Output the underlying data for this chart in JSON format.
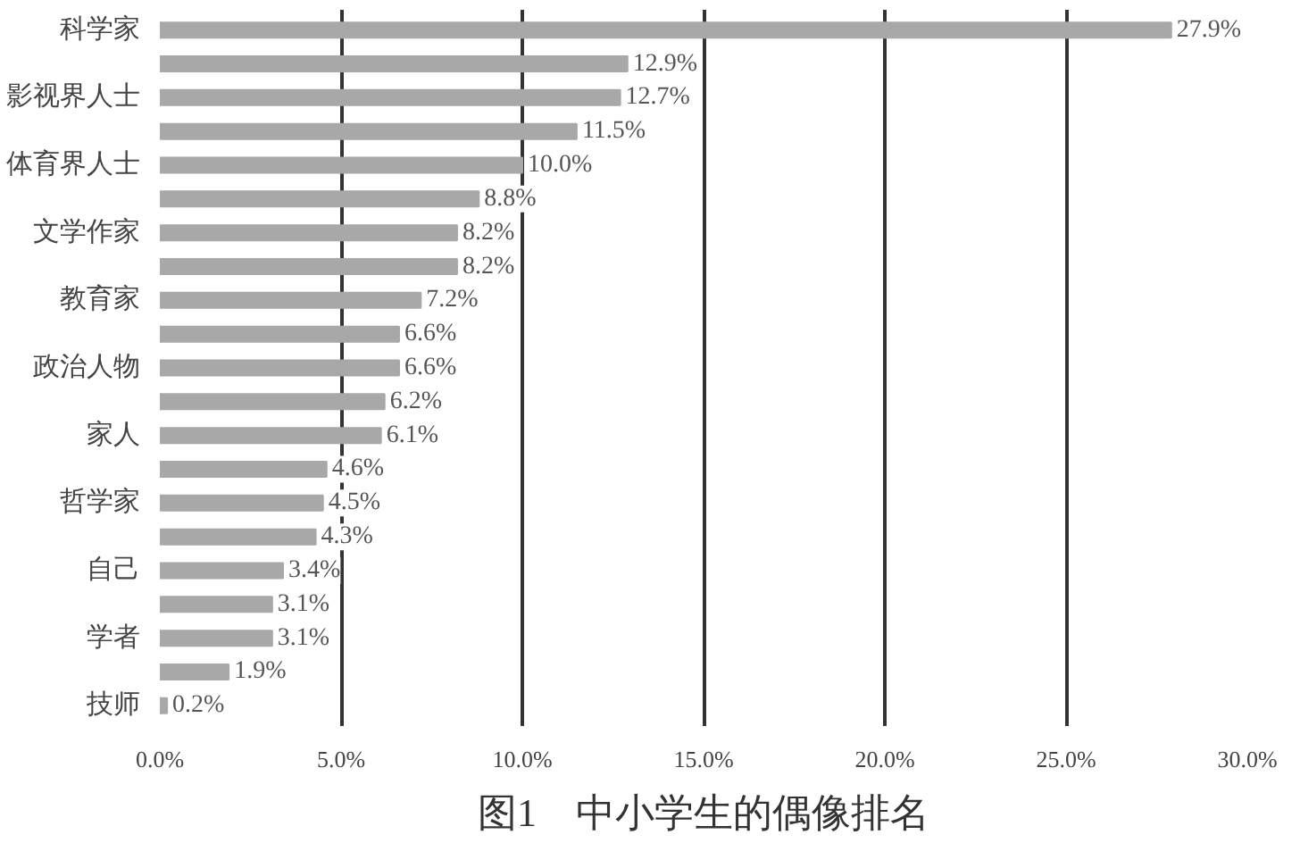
{
  "chart_data": {
    "type": "bar",
    "orientation": "horizontal",
    "title": "图1　中小学生的偶像排名",
    "categories": [
      "科学家",
      null,
      "影视界人士",
      null,
      "体育界人士",
      null,
      "文学作家",
      null,
      "教育家",
      null,
      "政治人物",
      null,
      "家人",
      null,
      "哲学家",
      null,
      "自己",
      null,
      "学者",
      null,
      "技师"
    ],
    "values": [
      27.9,
      12.9,
      12.7,
      11.5,
      10.0,
      8.8,
      8.2,
      8.2,
      7.2,
      6.6,
      6.6,
      6.2,
      6.1,
      4.6,
      4.5,
      4.3,
      3.4,
      3.1,
      3.1,
      1.9,
      0.2
    ],
    "value_labels": [
      "27.9%",
      "12.9%",
      "12.7%",
      "11.5%",
      "10.0%",
      "8.8%",
      "8.2%",
      "8.2%",
      "7.2%",
      "6.6%",
      "6.6%",
      "6.2%",
      "6.1%",
      "4.6%",
      "4.5%",
      "4.3%",
      "3.4%",
      "3.1%",
      "3.1%",
      "1.9%",
      "0.2%"
    ],
    "color": "#a8a8a8",
    "xlim": [
      0,
      30
    ],
    "xticks": [
      {
        "value": 0,
        "label": "0.0%"
      },
      {
        "value": 5,
        "label": "5.0%"
      },
      {
        "value": 10,
        "label": "10.0%"
      },
      {
        "value": 15,
        "label": "15.0%"
      },
      {
        "value": 20,
        "label": "20.0%"
      },
      {
        "value": 25,
        "label": "25.0%"
      },
      {
        "value": 30,
        "label": "30.0%"
      }
    ],
    "grid": "x"
  }
}
